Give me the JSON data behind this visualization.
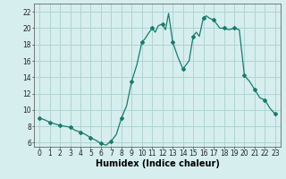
{
  "x": [
    0,
    0.5,
    1,
    1.5,
    2,
    2.5,
    3,
    3.5,
    4,
    4.5,
    5,
    5.5,
    6,
    6.5,
    7,
    7.5,
    8,
    8.5,
    9,
    9.5,
    10,
    10.3,
    10.6,
    11,
    11.3,
    11.6,
    12,
    12.3,
    12.6,
    13,
    13.5,
    14,
    14.3,
    14.6,
    15,
    15.3,
    15.6,
    16,
    16.3,
    16.6,
    17,
    17.3,
    17.6,
    18,
    18.5,
    19,
    19.5,
    20,
    20.5,
    21,
    21.5,
    22,
    22.5,
    23
  ],
  "y": [
    9.0,
    8.8,
    8.5,
    8.3,
    8.1,
    8.0,
    7.9,
    7.5,
    7.3,
    7.0,
    6.6,
    6.3,
    5.9,
    5.7,
    6.2,
    7.0,
    9.0,
    10.5,
    13.5,
    15.5,
    18.3,
    18.7,
    19.3,
    20.0,
    19.5,
    20.3,
    20.5,
    19.8,
    21.8,
    18.3,
    16.5,
    15.0,
    15.5,
    16.0,
    19.0,
    19.5,
    19.0,
    21.3,
    21.5,
    21.2,
    21.0,
    20.5,
    20.0,
    20.0,
    19.8,
    20.0,
    19.8,
    14.2,
    13.5,
    12.5,
    11.5,
    11.2,
    10.2,
    9.5
  ],
  "markers_x": [
    0,
    1,
    2,
    3,
    4,
    5,
    6,
    7,
    8,
    9,
    10,
    11,
    12,
    13,
    14,
    15,
    16,
    17,
    18,
    19,
    20,
    21,
    22,
    23
  ],
  "markers_y": [
    9.0,
    8.5,
    8.1,
    7.9,
    7.3,
    6.6,
    5.9,
    6.2,
    9.0,
    13.5,
    18.3,
    20.0,
    20.5,
    18.3,
    15.0,
    19.0,
    21.3,
    21.0,
    20.0,
    20.0,
    14.2,
    12.5,
    11.2,
    9.5
  ],
  "line_color": "#1a7a6e",
  "marker": "D",
  "marker_size": 2.0,
  "bg_color": "#d6eeee",
  "grid_color": "#b0d4d4",
  "xlabel": "Humidex (Indice chaleur)",
  "xlim": [
    -0.5,
    23.5
  ],
  "ylim": [
    5.5,
    23.0
  ],
  "yticks": [
    6,
    8,
    10,
    12,
    14,
    16,
    18,
    20,
    22
  ],
  "xticks": [
    0,
    1,
    2,
    3,
    4,
    5,
    6,
    7,
    8,
    9,
    10,
    11,
    12,
    13,
    14,
    15,
    16,
    17,
    18,
    19,
    20,
    21,
    22,
    23
  ],
  "tick_fontsize": 5.5,
  "xlabel_fontsize": 7.0
}
